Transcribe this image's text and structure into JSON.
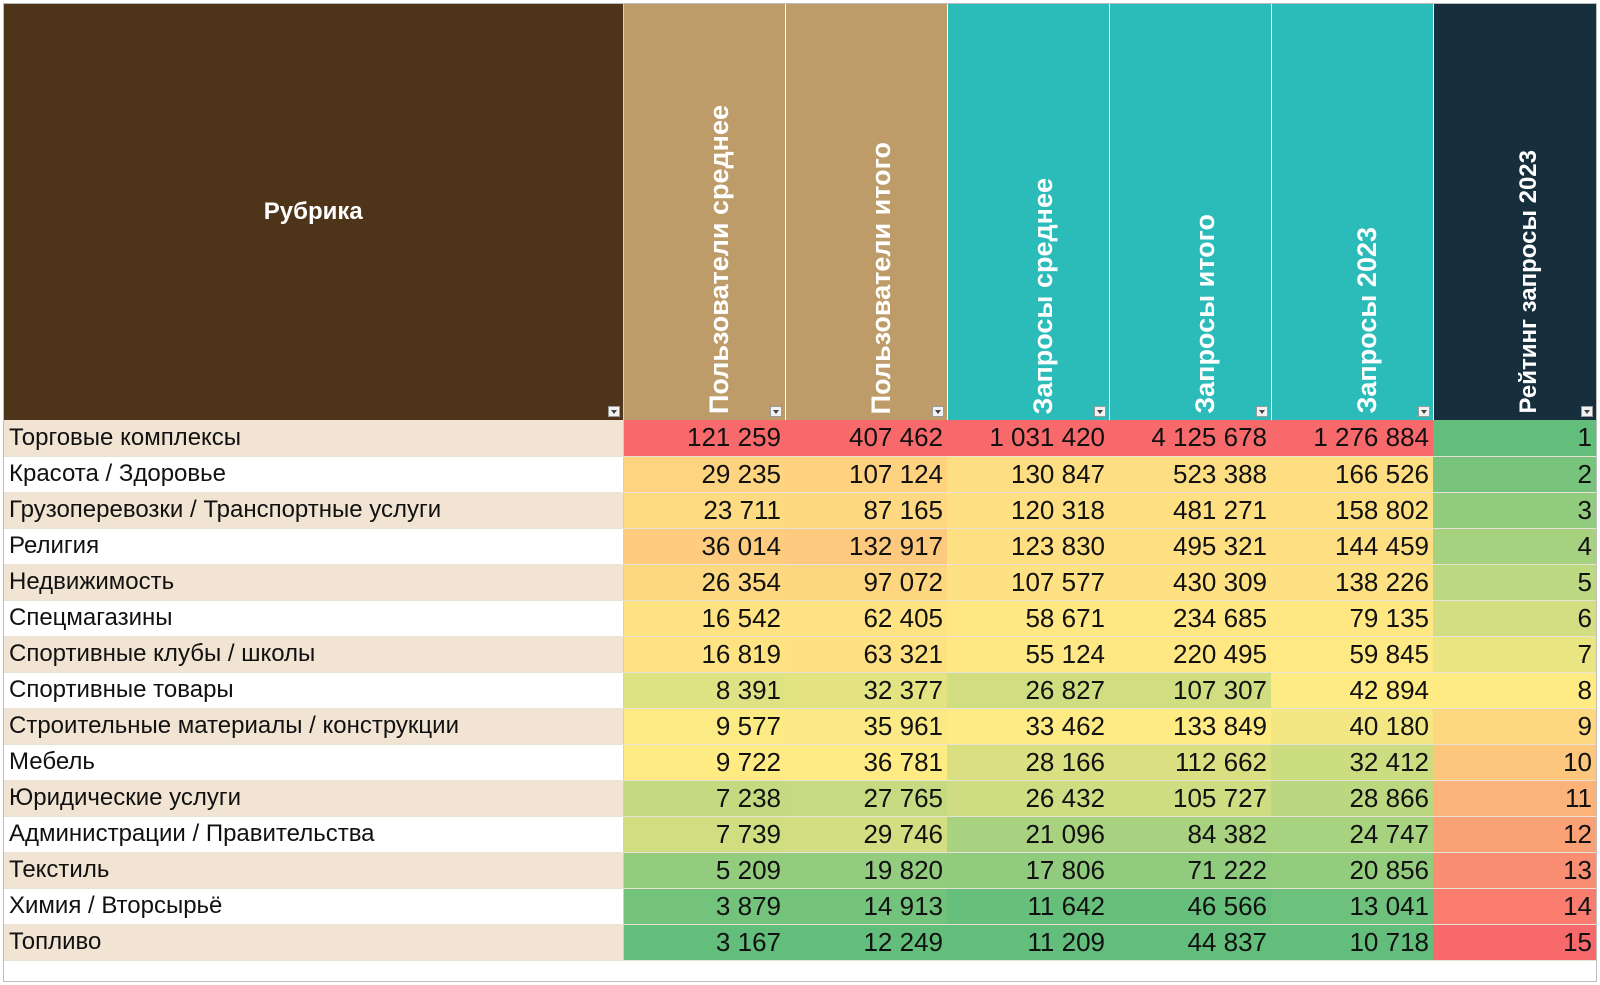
{
  "table": {
    "headers": {
      "rubric": "Рубрика",
      "users_avg": "Пользователи среднее",
      "users_total": "Пользователи итого",
      "queries_avg": "Запросы среднее",
      "queries_total": "Запросы итого",
      "queries_2023": "Запросы 2023",
      "rating_2023": "Рейтинг запросы 2023"
    },
    "colors": {
      "rubric_header": "#4e3419",
      "users_header": "#bd9c69",
      "queries_header": "#2bbbb9",
      "rating_header": "#172f3d",
      "row_band": "#f2e4d2",
      "scale_low": "#f8696b",
      "scale_mid": "#ffeb84",
      "scale_high": "#63be7b"
    },
    "rows": [
      {
        "name": "Торговые комплексы",
        "users_avg": "121 259",
        "users_total": "407 462",
        "queries_avg": "1 031 420",
        "queries_total": "4 125 678",
        "queries_2023": "1 276 884",
        "rating": "1"
      },
      {
        "name": "Красота / Здоровье",
        "users_avg": "29 235",
        "users_total": "107 124",
        "queries_avg": "130 847",
        "queries_total": "523 388",
        "queries_2023": "166 526",
        "rating": "2"
      },
      {
        "name": "Грузоперевозки / Транспортные услуги",
        "users_avg": "23 711",
        "users_total": "87 165",
        "queries_avg": "120 318",
        "queries_total": "481 271",
        "queries_2023": "158 802",
        "rating": "3"
      },
      {
        "name": "Религия",
        "users_avg": "36 014",
        "users_total": "132 917",
        "queries_avg": "123 830",
        "queries_total": "495 321",
        "queries_2023": "144 459",
        "rating": "4"
      },
      {
        "name": "Недвижимость",
        "users_avg": "26 354",
        "users_total": "97 072",
        "queries_avg": "107 577",
        "queries_total": "430 309",
        "queries_2023": "138 226",
        "rating": "5"
      },
      {
        "name": "Спецмагазины",
        "users_avg": "16 542",
        "users_total": "62 405",
        "queries_avg": "58 671",
        "queries_total": "234 685",
        "queries_2023": "79 135",
        "rating": "6"
      },
      {
        "name": "Спортивные клубы / школы",
        "users_avg": "16 819",
        "users_total": "63 321",
        "queries_avg": "55 124",
        "queries_total": "220 495",
        "queries_2023": "59 845",
        "rating": "7"
      },
      {
        "name": "Спортивные товары",
        "users_avg": "8 391",
        "users_total": "32 377",
        "queries_avg": "26 827",
        "queries_total": "107 307",
        "queries_2023": "42 894",
        "rating": "8"
      },
      {
        "name": "Строительные материалы / конструкции",
        "users_avg": "9 577",
        "users_total": "35 961",
        "queries_avg": "33 462",
        "queries_total": "133 849",
        "queries_2023": "40 180",
        "rating": "9"
      },
      {
        "name": "Мебель",
        "users_avg": "9 722",
        "users_total": "36 781",
        "queries_avg": "28 166",
        "queries_total": "112 662",
        "queries_2023": "32 412",
        "rating": "10"
      },
      {
        "name": "Юридические услуги",
        "users_avg": "7 238",
        "users_total": "27 765",
        "queries_avg": "26 432",
        "queries_total": "105 727",
        "queries_2023": "28 866",
        "rating": "11"
      },
      {
        "name": "Администрации / Правительства",
        "users_avg": "7 739",
        "users_total": "29 746",
        "queries_avg": "21 096",
        "queries_total": "84 382",
        "queries_2023": "24 747",
        "rating": "12"
      },
      {
        "name": "Текстиль",
        "users_avg": "5 209",
        "users_total": "19 820",
        "queries_avg": "17 806",
        "queries_total": "71 222",
        "queries_2023": "20 856",
        "rating": "13"
      },
      {
        "name": "Химия / Вторсырьё",
        "users_avg": "3 879",
        "users_total": "14 913",
        "queries_avg": "11 642",
        "queries_total": "46 566",
        "queries_2023": "13 041",
        "rating": "14"
      },
      {
        "name": "Топливо",
        "users_avg": "3 167",
        "users_total": "12 249",
        "queries_avg": "11 209",
        "queries_total": "44 837",
        "queries_2023": "10 718",
        "rating": "15"
      }
    ]
  }
}
